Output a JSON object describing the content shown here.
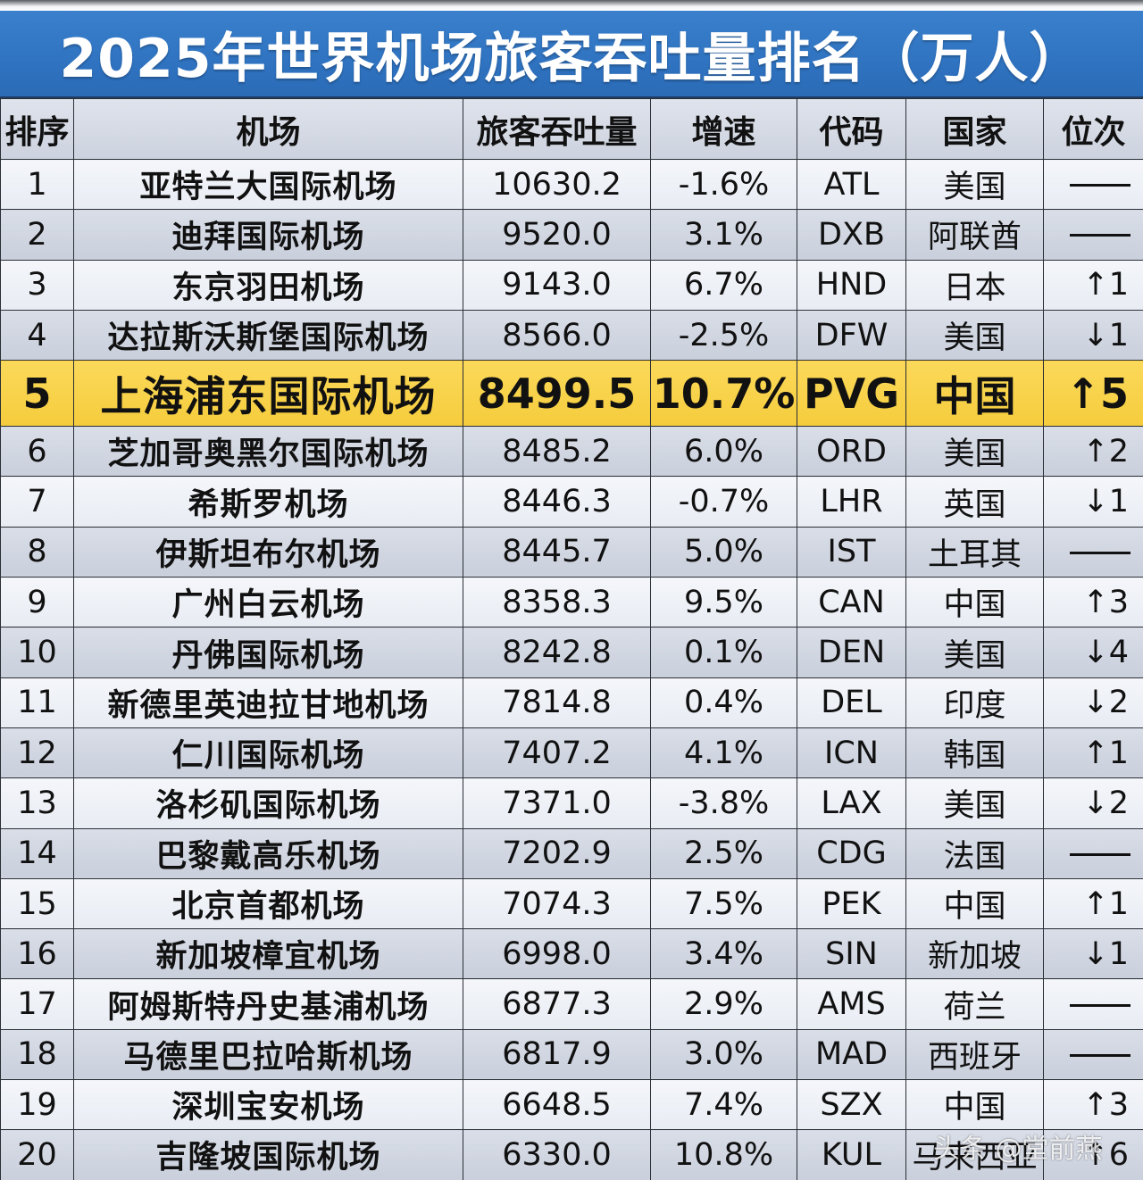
{
  "title": "2025年世界机场旅客吞吐量排名（万人）",
  "colors": {
    "title_bg": "#2f73c1",
    "header_bg": "#d3d8e3",
    "row_light": "#eef1f6",
    "row_dark": "#d0d5e0",
    "highlight": "#f7cf45",
    "border": "#2b2f36"
  },
  "columns": [
    "排序",
    "机场",
    "旅客吞吐量",
    "增速",
    "代码",
    "国家",
    "位次"
  ],
  "rows": [
    {
      "rank": "1",
      "airport": "亚特兰大国际机场",
      "passengers": "10630.2",
      "growth": "-1.6%",
      "code": "ATL",
      "country": "美国",
      "change": "——",
      "change_dir": "none"
    },
    {
      "rank": "2",
      "airport": "迪拜国际机场",
      "passengers": "9520.0",
      "growth": "3.1%",
      "code": "DXB",
      "country": "阿联酋",
      "change": "——",
      "change_dir": "none"
    },
    {
      "rank": "3",
      "airport": "东京羽田机场",
      "passengers": "9143.0",
      "growth": "6.7%",
      "code": "HND",
      "country": "日本",
      "change": "↑1",
      "change_dir": "up"
    },
    {
      "rank": "4",
      "airport": "达拉斯沃斯堡国际机场",
      "passengers": "8566.0",
      "growth": "-2.5%",
      "code": "DFW",
      "country": "美国",
      "change": "↓1",
      "change_dir": "down"
    },
    {
      "rank": "5",
      "airport": "上海浦东国际机场",
      "passengers": "8499.5",
      "growth": "10.7%",
      "code": "PVG",
      "country": "中国",
      "change": "↑5",
      "change_dir": "up",
      "highlight": true
    },
    {
      "rank": "6",
      "airport": "芝加哥奥黑尔国际机场",
      "passengers": "8485.2",
      "growth": "6.0%",
      "code": "ORD",
      "country": "美国",
      "change": "↑2",
      "change_dir": "up"
    },
    {
      "rank": "7",
      "airport": "希斯罗机场",
      "passengers": "8446.3",
      "growth": "-0.7%",
      "code": "LHR",
      "country": "英国",
      "change": "↓1",
      "change_dir": "down"
    },
    {
      "rank": "8",
      "airport": "伊斯坦布尔机场",
      "passengers": "8445.7",
      "growth": "5.0%",
      "code": "IST",
      "country": "土耳其",
      "change": "——",
      "change_dir": "none"
    },
    {
      "rank": "9",
      "airport": "广州白云机场",
      "passengers": "8358.3",
      "growth": "9.5%",
      "code": "CAN",
      "country": "中国",
      "change": "↑3",
      "change_dir": "up"
    },
    {
      "rank": "10",
      "airport": "丹佛国际机场",
      "passengers": "8242.8",
      "growth": "0.1%",
      "code": "DEN",
      "country": "美国",
      "change": "↓4",
      "change_dir": "down"
    },
    {
      "rank": "11",
      "airport": "新德里英迪拉甘地机场",
      "passengers": "7814.8",
      "growth": "0.4%",
      "code": "DEL",
      "country": "印度",
      "change": "↓2",
      "change_dir": "down"
    },
    {
      "rank": "12",
      "airport": "仁川国际机场",
      "passengers": "7407.2",
      "growth": "4.1%",
      "code": "ICN",
      "country": "韩国",
      "change": "↑1",
      "change_dir": "up"
    },
    {
      "rank": "13",
      "airport": "洛杉矶国际机场",
      "passengers": "7371.0",
      "growth": "-3.8%",
      "code": "LAX",
      "country": "美国",
      "change": "↓2",
      "change_dir": "down"
    },
    {
      "rank": "14",
      "airport": "巴黎戴高乐机场",
      "passengers": "7202.9",
      "growth": "2.5%",
      "code": "CDG",
      "country": "法国",
      "change": "——",
      "change_dir": "none"
    },
    {
      "rank": "15",
      "airport": "北京首都机场",
      "passengers": "7074.3",
      "growth": "7.5%",
      "code": "PEK",
      "country": "中国",
      "change": "↑1",
      "change_dir": "up"
    },
    {
      "rank": "16",
      "airport": "新加坡樟宜机场",
      "passengers": "6998.0",
      "growth": "3.4%",
      "code": "SIN",
      "country": "新加坡",
      "change": "↓1",
      "change_dir": "down"
    },
    {
      "rank": "17",
      "airport": "阿姆斯特丹史基浦机场",
      "passengers": "6877.3",
      "growth": "2.9%",
      "code": "AMS",
      "country": "荷兰",
      "change": "——",
      "change_dir": "none"
    },
    {
      "rank": "18",
      "airport": "马德里巴拉哈斯机场",
      "passengers": "6817.9",
      "growth": "3.0%",
      "code": "MAD",
      "country": "西班牙",
      "change": "——",
      "change_dir": "none"
    },
    {
      "rank": "19",
      "airport": "深圳宝安机场",
      "passengers": "6648.5",
      "growth": "7.4%",
      "code": "SZX",
      "country": "中国",
      "change": "↑3",
      "change_dir": "up"
    },
    {
      "rank": "20",
      "airport": "吉隆坡国际机场",
      "passengers": "6330.0",
      "growth": "10.8%",
      "code": "KUL",
      "country": "马来西亚",
      "change": "↑6",
      "change_dir": "up"
    }
  ],
  "watermark": "头条 @堂前燕"
}
